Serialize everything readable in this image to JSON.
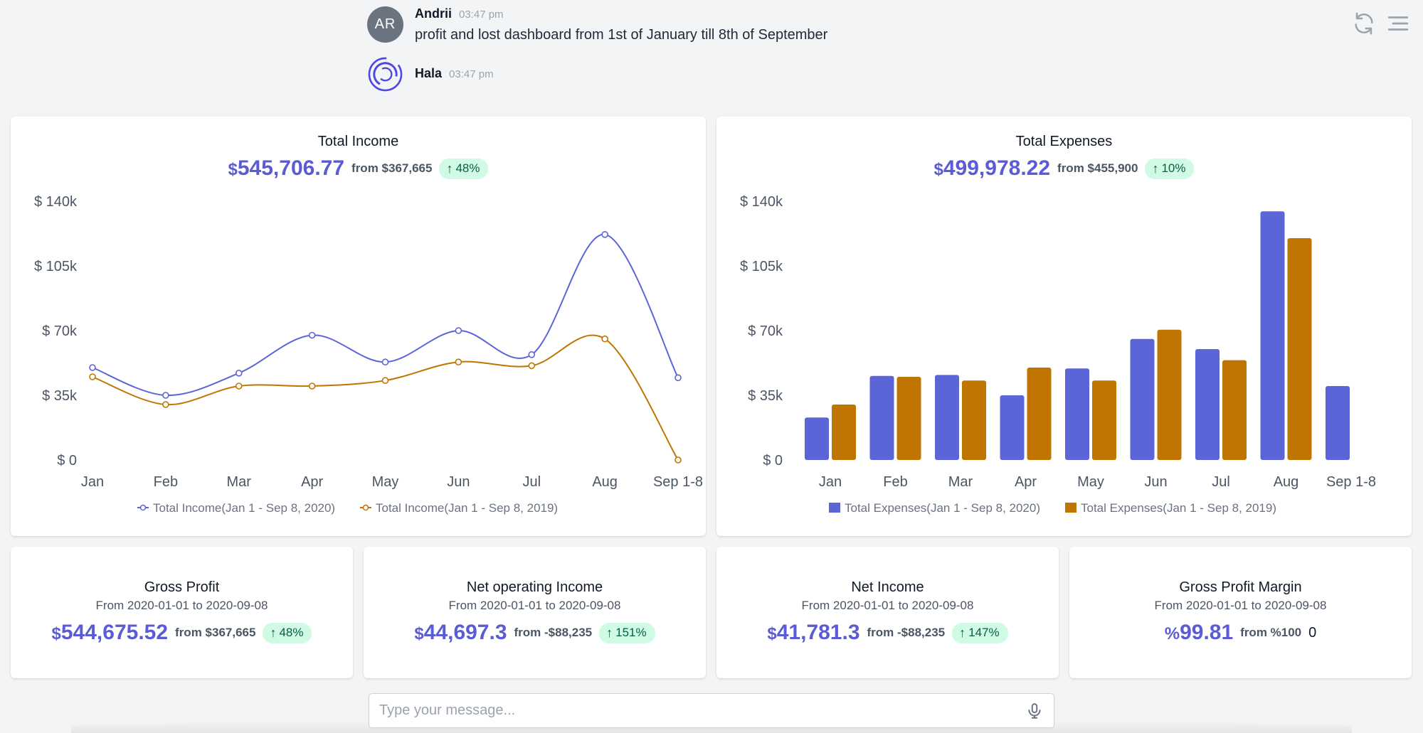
{
  "chat": {
    "messages": [
      {
        "avatar_initials": "AR",
        "author": "Andrii",
        "time": "03:47 pm",
        "text": "profit and lost dashboard from 1st of January till 8th of September"
      },
      {
        "author": "Hala",
        "time": "03:47 pm"
      }
    ]
  },
  "toolbar": {
    "icons": [
      "refresh-icon",
      "menu-icon"
    ]
  },
  "income_card": {
    "title": "Total Income",
    "currency": "$",
    "amount": "545,706.77",
    "from": "from $367,665",
    "change": "48%"
  },
  "expenses_card": {
    "title": "Total Expenses",
    "currency": "$",
    "amount": "499,978.22",
    "from": "from $455,900",
    "change": "10%"
  },
  "kpis": [
    {
      "title": "Gross Profit",
      "date_range": "From 2020-01-01 to 2020-09-08",
      "currency": "$",
      "amount": "544,675.52",
      "from": "from $367,665",
      "change": "48%"
    },
    {
      "title": "Net operating Income",
      "date_range": "From 2020-01-01 to 2020-09-08",
      "currency": "$",
      "amount": "44,697.3",
      "from": "from -$88,235",
      "change": "151%"
    },
    {
      "title": "Net Income",
      "date_range": "From 2020-01-01 to 2020-09-08",
      "currency": "$",
      "amount": "41,781.3",
      "from": "from -$88,235",
      "change": "147%"
    },
    {
      "title": "Gross Profit Margin",
      "date_range": "From 2020-01-01 to 2020-09-08",
      "currency": "%",
      "amount": "99.81",
      "from": "from %100",
      "trail": "0"
    }
  ],
  "composer": {
    "placeholder": "Type your message..."
  },
  "colors": {
    "accent": "#5b5bd6",
    "series_2020": "#5c65d8",
    "series_2019": "#c07500",
    "badge_bg": "#d1fae5",
    "badge_text": "#065f46"
  },
  "chart_data": [
    {
      "type": "line",
      "categories": [
        "Jan",
        "Feb",
        "Mar",
        "Apr",
        "May",
        "Jun",
        "Jul",
        "Aug",
        "Sep 1-8"
      ],
      "series": [
        {
          "name": "Total Income(Jan 1 - Sep 8, 2020)",
          "color": "#5c65d8",
          "values": [
            50000,
            35000,
            47000,
            67500,
            53000,
            70000,
            57000,
            122000,
            44500
          ]
        },
        {
          "name": "Total Income(Jan 1 - Sep 8, 2019)",
          "color": "#c07500",
          "values": [
            45000,
            30000,
            40000,
            40000,
            43000,
            53000,
            51000,
            65500,
            0
          ]
        }
      ],
      "yticks": [
        "$ 0",
        "$ 35k",
        "$ 70k",
        "$ 105k",
        "$ 140k"
      ],
      "ylim": [
        0,
        140000
      ],
      "legend": "bottom"
    },
    {
      "type": "bar",
      "categories": [
        "Jan",
        "Feb",
        "Mar",
        "Apr",
        "May",
        "Jun",
        "Jul",
        "Aug",
        "Sep 1-8"
      ],
      "series": [
        {
          "name": "Total Expenses(Jan 1 - Sep 8, 2020)",
          "color": "#5c65d8",
          "values": [
            23000,
            45500,
            46000,
            35000,
            49500,
            65500,
            60000,
            134500,
            40000
          ]
        },
        {
          "name": "Total Expenses(Jan 1 - Sep 8, 2019)",
          "color": "#c07500",
          "values": [
            30000,
            45000,
            43000,
            50000,
            43000,
            70500,
            54000,
            120000,
            null
          ]
        }
      ],
      "yticks": [
        "$ 0",
        "$ 35k",
        "$ 70k",
        "$ 105k",
        "$ 140k"
      ],
      "ylim": [
        0,
        140000
      ],
      "legend": "bottom"
    }
  ]
}
